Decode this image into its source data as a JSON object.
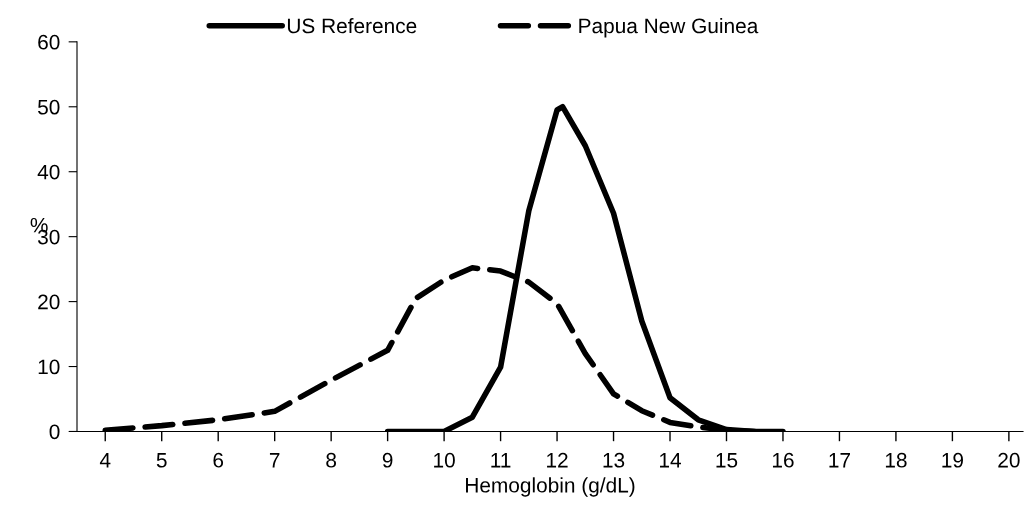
{
  "chart_data": {
    "type": "line",
    "xlabel": "Hemoglobin (g/dL)",
    "ylabel": "%",
    "xlim": [
      3.5,
      20.25
    ],
    "xticks": [
      4,
      5,
      6,
      7,
      8,
      9,
      10,
      11,
      12,
      13,
      14,
      15,
      16,
      17,
      18,
      19,
      20
    ],
    "ylim": [
      0,
      60
    ],
    "yticks": [
      0,
      10,
      20,
      30,
      40,
      50,
      60
    ],
    "grid": false,
    "legend": "top",
    "marker": "none",
    "series": [
      {
        "name": "US Reference",
        "color": "#000000",
        "line_style": "solid",
        "x": [
          9,
          9.5,
          10,
          10.5,
          11,
          11.5,
          12,
          12.1,
          12.5,
          13,
          13.5,
          14,
          14.5,
          15,
          15.5,
          16
        ],
        "values": [
          0,
          0,
          0,
          2.2,
          9.9,
          34,
          49.5,
          50,
          44,
          33.6,
          17,
          5.2,
          1.8,
          0.3,
          0,
          0
        ]
      },
      {
        "name": "Papua New Guinea",
        "color": "#000000",
        "line_style": "dashed",
        "x": [
          4,
          5,
          6,
          7,
          8,
          9,
          9.5,
          10,
          10.5,
          11,
          11.5,
          12,
          12.5,
          13,
          13.5,
          14,
          14.5,
          15,
          15.5
        ],
        "values": [
          0.2,
          0.9,
          1.8,
          3.1,
          7.9,
          12.5,
          20.5,
          23.3,
          25.2,
          24.7,
          23,
          19.7,
          12,
          5.8,
          3.2,
          1.4,
          0.7,
          0.2,
          0
        ]
      }
    ]
  }
}
